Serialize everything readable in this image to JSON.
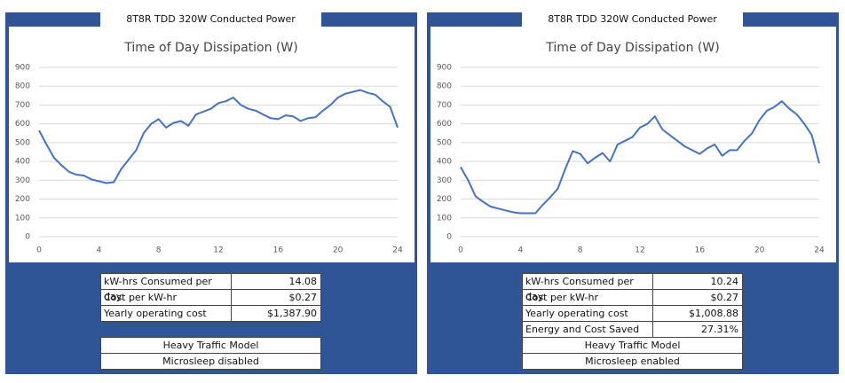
{
  "chart_data": [
    {
      "type": "line",
      "title": "Time of Day Dissipation (W)",
      "color": "#4472c4",
      "x": [
        0,
        0.5,
        1,
        1.5,
        2,
        2.5,
        3,
        3.5,
        4,
        4.5,
        5,
        5.5,
        6,
        6.5,
        7,
        7.5,
        8,
        8.5,
        9,
        9.5,
        10,
        10.5,
        11,
        11.5,
        12,
        12.5,
        13,
        13.5,
        14,
        14.5,
        15,
        15.5,
        16,
        16.5,
        17,
        17.5,
        18,
        18.5,
        19,
        19.5,
        20,
        20.5,
        21,
        21.5,
        22,
        22.5,
        23,
        23.5,
        24
      ],
      "values": [
        565,
        490,
        420,
        380,
        345,
        330,
        325,
        305,
        295,
        285,
        290,
        360,
        410,
        460,
        550,
        600,
        625,
        580,
        605,
        615,
        590,
        650,
        665,
        680,
        710,
        720,
        740,
        700,
        680,
        670,
        650,
        630,
        625,
        645,
        640,
        615,
        630,
        635,
        670,
        700,
        740,
        760,
        770,
        780,
        765,
        755,
        720,
        690,
        580
      ],
      "xlim": [
        0,
        24
      ],
      "xticks": [
        0,
        4,
        8,
        12,
        16,
        20,
        24
      ],
      "ylim": [
        0,
        900
      ],
      "yticks": [
        0,
        100,
        200,
        300,
        400,
        500,
        600,
        700,
        800,
        900
      ],
      "grid": true
    },
    {
      "type": "line",
      "title": "Time of Day Dissipation (W)",
      "color": "#4472c4",
      "x": [
        0,
        0.5,
        1,
        1.5,
        2,
        2.5,
        3,
        3.5,
        4,
        4.5,
        5,
        5.5,
        6,
        6.5,
        7,
        7.5,
        8,
        8.5,
        9,
        9.5,
        10,
        10.5,
        11,
        11.5,
        12,
        12.5,
        13,
        13.5,
        14,
        14.5,
        15,
        15.5,
        16,
        16.5,
        17,
        17.5,
        18,
        18.5,
        19,
        19.5,
        20,
        20.5,
        21,
        21.5,
        22,
        22.5,
        23,
        23.5,
        24
      ],
      "values": [
        370,
        300,
        215,
        185,
        160,
        150,
        140,
        130,
        125,
        125,
        125,
        170,
        210,
        255,
        360,
        455,
        440,
        390,
        420,
        445,
        400,
        490,
        510,
        530,
        580,
        600,
        640,
        570,
        540,
        510,
        480,
        460,
        440,
        470,
        490,
        430,
        460,
        460,
        510,
        550,
        620,
        670,
        690,
        720,
        680,
        650,
        600,
        540,
        390
      ],
      "xlim": [
        0,
        24
      ],
      "xticks": [
        0,
        4,
        8,
        12,
        16,
        20,
        24
      ],
      "ylim": [
        0,
        900
      ],
      "yticks": [
        0,
        100,
        200,
        300,
        400,
        500,
        600,
        700,
        800,
        900
      ],
      "grid": true
    }
  ],
  "panels": [
    {
      "header": "8T8R TDD 320W Conducted Power",
      "table": [
        [
          "kW-hrs Consumed per day:",
          "14.08"
        ],
        [
          "Cost per kW-hr",
          "$0.27"
        ],
        [
          "Yearly operating cost",
          "$1,387.90"
        ]
      ],
      "notes": [
        "Heavy Traffic Model",
        "Microsleep disabled"
      ]
    },
    {
      "header": "8T8R TDD 320W Conducted Power",
      "table": [
        [
          "kW-hrs Consumed per day:",
          "10.24"
        ],
        [
          "Cost per kW-hr",
          "$0.27"
        ],
        [
          "Yearly operating cost",
          "$1,008.88"
        ],
        [
          "Energy and Cost Saved",
          "27.31%"
        ]
      ],
      "notes": [
        "Heavy Traffic Model",
        "Microsleep enabled"
      ]
    }
  ]
}
